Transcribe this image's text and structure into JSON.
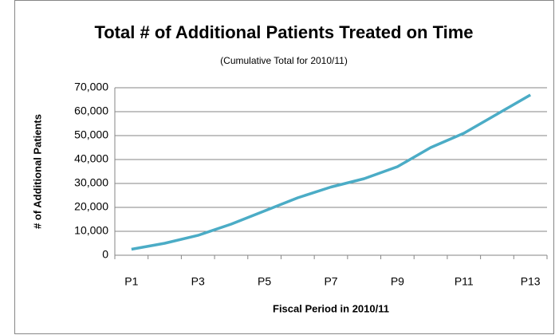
{
  "chart_data": {
    "type": "line",
    "title": "Total # of Additional Patients Treated on Time",
    "subtitle": "(Cumulative Total for 2010/11)",
    "x_label": "Fiscal Period in 2010/11",
    "y_label": "# of Additional Patients",
    "categories": [
      "P1",
      null,
      "P3",
      null,
      "P5",
      null,
      "P7",
      null,
      "P9",
      null,
      "P11",
      null,
      "P13"
    ],
    "values": [
      2500,
      5000,
      8300,
      13000,
      18500,
      24000,
      28500,
      32000,
      37000,
      45000,
      51000,
      59000,
      67000
    ],
    "color": "#4bacc6",
    "ylim": [
      0,
      70000
    ],
    "yticks": [
      0,
      {
        "value": 10000,
        "label": "10,000"
      },
      {
        "value": 20000,
        "label": "20,000"
      },
      {
        "value": 30000,
        "label": "30,000"
      },
      {
        "value": 40000,
        "label": "40,000"
      },
      {
        "value": 50000,
        "label": "50,000"
      },
      {
        "value": 60000,
        "label": "60,000"
      },
      {
        "value": 70000,
        "label": "70,000"
      }
    ],
    "grid": true
  }
}
